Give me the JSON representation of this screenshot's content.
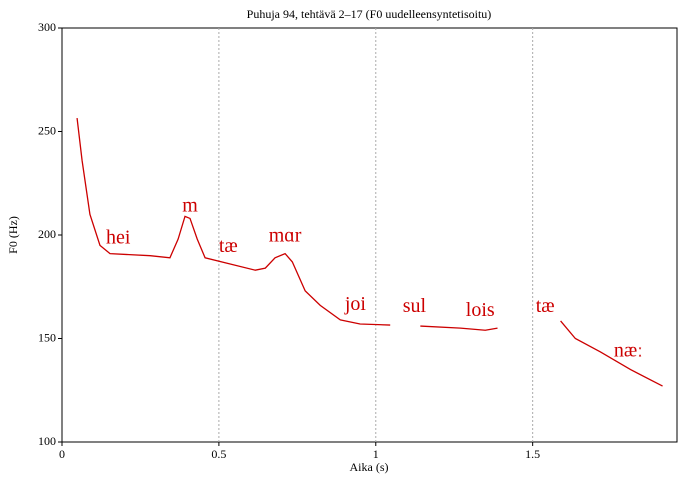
{
  "chart_data": {
    "type": "line",
    "title": "Puhuja 94, tehtävä 2–17 (F0 uudelleensyntetisoitu)",
    "x_label": "Aika (s)",
    "y_label": "F0 (Hz)",
    "xlim": [
      0,
      1.96
    ],
    "ylim": [
      100,
      300
    ],
    "xticks": [
      0,
      0.5,
      1,
      1.5
    ],
    "yticks": [
      100,
      150,
      200,
      250,
      300
    ],
    "grid": "x",
    "series": [
      {
        "name": "F0",
        "color": "#cc0000",
        "x": [
          0.048,
          0.064,
          0.089,
          0.121,
          0.153,
          0.281,
          0.344,
          0.37,
          0.392,
          0.408,
          0.431,
          0.456,
          0.536,
          0.616,
          0.648,
          0.679,
          0.711,
          0.734,
          0.775,
          0.823,
          0.887,
          0.95,
          1.046,
          1.1,
          1.142,
          1.27,
          1.349,
          1.388,
          1.5,
          1.589,
          1.636,
          1.716,
          1.812,
          1.914
        ],
        "values": [
          256.5,
          236,
          210,
          195,
          191,
          190,
          189,
          198,
          209,
          208,
          198,
          189,
          186,
          183,
          184,
          189,
          191,
          187,
          173,
          166,
          159,
          157,
          156.5,
          null,
          156,
          155,
          154,
          155,
          null,
          158.5,
          150,
          143.5,
          135,
          127
        ]
      }
    ],
    "annotations": [
      {
        "text": "hei",
        "x": 0.179,
        "y": 198
      },
      {
        "text": "m",
        "x": 0.408,
        "y": 213.5
      },
      {
        "text": "tæ",
        "x": 0.53,
        "y": 194
      },
      {
        "text": "mɑr",
        "x": 0.711,
        "y": 199
      },
      {
        "text": "joi",
        "x": 0.935,
        "y": 166
      },
      {
        "text": "sul",
        "x": 1.123,
        "y": 165
      },
      {
        "text": "lois",
        "x": 1.333,
        "y": 163
      },
      {
        "text": "tæ",
        "x": 1.54,
        "y": 165
      },
      {
        "text": "næː",
        "x": 1.805,
        "y": 143.5
      }
    ]
  }
}
